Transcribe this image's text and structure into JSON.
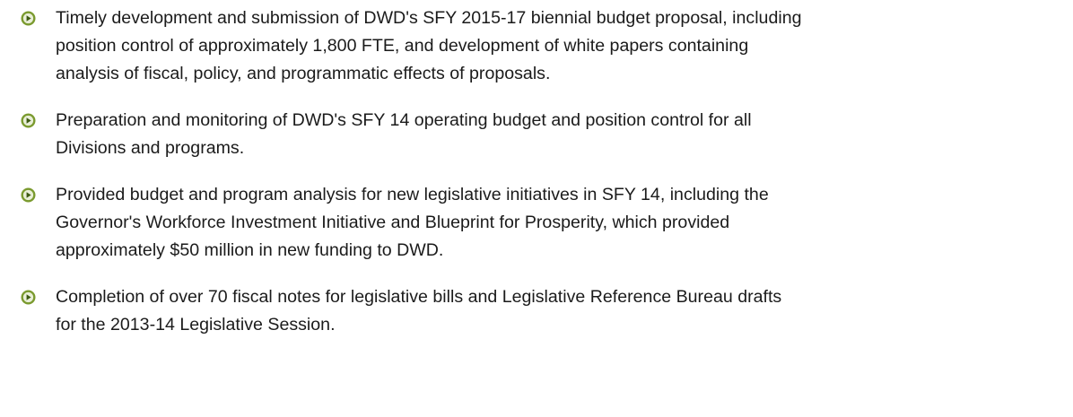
{
  "list": {
    "items": [
      [
        "Timely development and submission of DWD's SFY 2015-17 biennial budget proposal, including",
        "position control of approximately 1,800 FTE, and development of white papers containing",
        "analysis of fiscal, policy, and programmatic effects of proposals."
      ],
      [
        "Preparation and monitoring of DWD's SFY 14 operating budget and position control for all",
        "Divisions and programs."
      ],
      [
        "Provided budget and program analysis for new legislative initiatives in SFY 14, including the",
        "Governor's Workforce Investment Initiative and Blueprint for Prosperity, which provided",
        "approximately $50 million in new funding to DWD."
      ],
      [
        "Completion of over 70 fiscal notes for legislative bills and Legislative Reference Bureau drafts",
        "for the 2013-14 Legislative Session."
      ]
    ]
  }
}
